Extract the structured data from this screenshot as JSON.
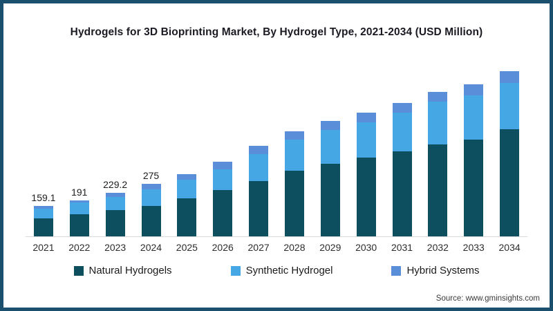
{
  "chart_data": {
    "type": "bar",
    "stacked": true,
    "title": "Hydrogels for 3D Bioprinting Market, By Hydrogel Type, 2021-2034 (USD Million)",
    "categories": [
      "2021",
      "2022",
      "2023",
      "2024",
      "2025",
      "2026",
      "2027",
      "2028",
      "2029",
      "2030",
      "2031",
      "2032",
      "2033",
      "2034"
    ],
    "series": [
      {
        "name": "Natural Hydrogels",
        "color": "#0d4e5f",
        "values": [
          93,
          118,
          137,
          161,
          202,
          244,
          291,
          345,
          383,
          415,
          446,
          483,
          510,
          564
        ]
      },
      {
        "name": "Synthetic Hydrogel",
        "color": "#45a7e3",
        "values": [
          50,
          61,
          70,
          86,
          99,
          111,
          142,
          162,
          180,
          184,
          203,
          227,
          232,
          244
        ]
      },
      {
        "name": "Hybrid Systems",
        "color": "#5b8ed8",
        "values": [
          16,
          12,
          22,
          28,
          29,
          40,
          42,
          43,
          47,
          51,
          51,
          50,
          58,
          62
        ]
      }
    ],
    "totals_estimated": [
      159.1,
      191,
      229.2,
      275,
      330,
      395,
      475,
      550,
      610,
      650,
      700,
      760,
      800,
      870
    ],
    "bar_total_labels": [
      "159.1",
      "191",
      "229.2",
      "275",
      "",
      "",
      "",
      "",
      "",
      "",
      "",
      "",
      "",
      ""
    ],
    "ylim": [
      0,
      910
    ],
    "grid": false,
    "y_axis_visible": false,
    "legend_position": "bottom",
    "axis_line_color": "#d9d9d9"
  },
  "frame": {
    "border_color": "#1a506e",
    "background": "#ffffff"
  },
  "source": {
    "text": "Source: www.gminsights.com"
  }
}
